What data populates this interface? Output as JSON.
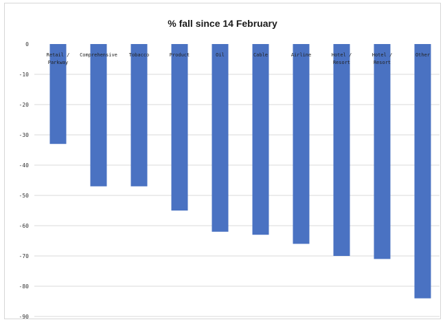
{
  "chart_data": {
    "type": "bar",
    "title": "% fall since 14 February",
    "xlabel": "",
    "ylabel": "",
    "ylim": [
      -90,
      0
    ],
    "yticks": [
      0,
      -10,
      -20,
      -30,
      -40,
      -50,
      -60,
      -70,
      -80,
      -90
    ],
    "grid": true,
    "legend": "none",
    "categories": [
      "Retail / Parkway",
      "Comprehensive",
      "Tobacco",
      "Product",
      "Oil",
      "Cable",
      "Airline",
      "Hotel / Resort",
      "Hotel / Resort",
      "Other"
    ],
    "values": [
      -33,
      -47,
      -47,
      -55,
      -62,
      -63,
      -66,
      -70,
      -71,
      -84
    ],
    "color": "#4a72c2"
  }
}
